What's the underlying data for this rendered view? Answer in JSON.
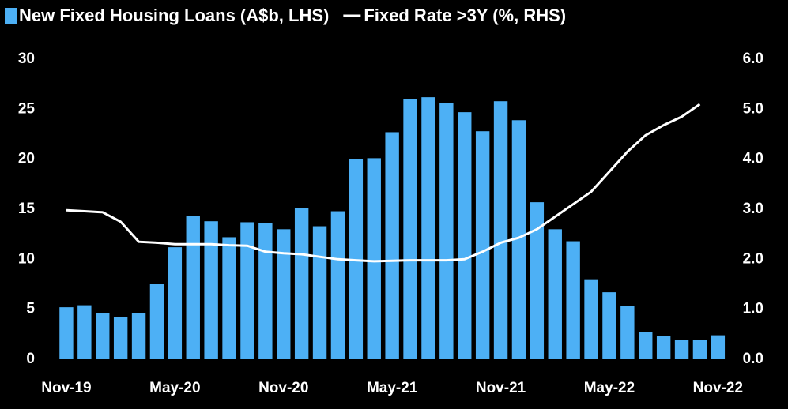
{
  "chart_data": {
    "type": "bar-line",
    "categories": [
      "Nov-19",
      null,
      null,
      null,
      null,
      null,
      "May-20",
      null,
      null,
      null,
      null,
      null,
      "Nov-20",
      null,
      null,
      null,
      null,
      null,
      "May-21",
      null,
      null,
      null,
      null,
      null,
      "Nov-21",
      null,
      null,
      null,
      null,
      null,
      "May-22",
      null,
      null,
      null,
      null,
      null,
      "Nov-22"
    ],
    "series": [
      {
        "name": "New Fixed Housing Loans (A$b, LHS)",
        "type": "bar",
        "color": "#4db0f5",
        "values": [
          5.2,
          5.4,
          4.6,
          4.2,
          4.6,
          7.5,
          11.2,
          14.3,
          13.8,
          12.2,
          13.7,
          13.6,
          13.0,
          15.1,
          13.3,
          14.8,
          20.0,
          20.1,
          22.7,
          26.0,
          26.2,
          25.6,
          24.7,
          22.8,
          25.8,
          23.9,
          15.7,
          13.0,
          11.8,
          8.0,
          6.7,
          5.3,
          2.7,
          2.3,
          1.9,
          1.9,
          2.4
        ]
      },
      {
        "name": "Fixed Rate >3Y (%, RHS)",
        "type": "line",
        "axis": "y2",
        "color": "#ffffff",
        "values": [
          2.98,
          2.96,
          2.94,
          2.75,
          2.35,
          2.33,
          2.3,
          2.3,
          2.3,
          2.28,
          2.27,
          2.15,
          2.12,
          2.1,
          2.05,
          2.0,
          1.98,
          1.96,
          1.97,
          1.98,
          1.98,
          1.98,
          2.0,
          2.15,
          2.33,
          2.43,
          2.6,
          2.85,
          3.1,
          3.35,
          3.75,
          4.15,
          4.48,
          4.68,
          4.85,
          5.1,
          null
        ]
      }
    ],
    "ylim": [
      0,
      30
    ],
    "yticks": [
      0,
      5,
      10,
      15,
      20,
      25,
      30
    ],
    "y2lim": [
      0,
      6
    ],
    "y2ticks": [
      {
        "value": 0,
        "label": "0.0"
      },
      {
        "value": 1,
        "label": "1.0"
      },
      {
        "value": 2,
        "label": "2.0"
      },
      {
        "value": 3,
        "label": "3.0"
      },
      {
        "value": 4,
        "label": "4.0"
      },
      {
        "value": 5,
        "label": "5.0"
      },
      {
        "value": 6,
        "label": "6.0"
      }
    ],
    "grid": false
  }
}
